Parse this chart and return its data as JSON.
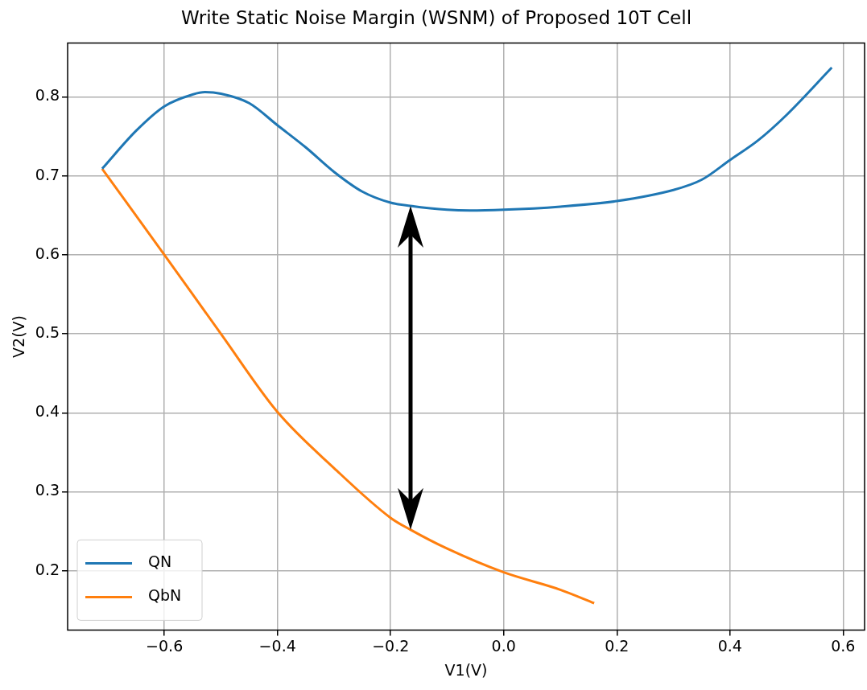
{
  "chart_data": {
    "type": "line",
    "title": "Write Static Noise Margin (WSNM) of Proposed 10T Cell",
    "xlabel": "V1(V)",
    "ylabel": "V2(V)",
    "series": [
      {
        "name": "QN",
        "color": "#1f77b4",
        "x": [
          -0.71,
          -0.65,
          -0.6,
          -0.55,
          -0.528,
          -0.5,
          -0.45,
          -0.4,
          -0.35,
          -0.3,
          -0.25,
          -0.2,
          -0.165,
          -0.1,
          -0.06,
          0.0,
          0.1,
          0.2,
          0.3,
          0.35,
          0.4,
          0.45,
          0.5,
          0.58
        ],
        "values": [
          0.709,
          0.757,
          0.788,
          0.803,
          0.806,
          0.804,
          0.792,
          0.764,
          0.736,
          0.705,
          0.68,
          0.666,
          0.662,
          0.657,
          0.656,
          0.657,
          0.661,
          0.668,
          0.682,
          0.695,
          0.72,
          0.745,
          0.777,
          0.837
        ]
      },
      {
        "name": "QbN",
        "color": "#ff7f0e",
        "x": [
          -0.71,
          -0.6,
          -0.5,
          -0.4,
          -0.3,
          -0.2,
          -0.165,
          -0.1,
          0.0,
          0.1,
          0.16
        ],
        "values": [
          0.709,
          0.6,
          0.5,
          0.401,
          0.33,
          0.267,
          0.252,
          0.228,
          0.198,
          0.176,
          0.159
        ]
      }
    ],
    "xlim": [
      -0.771,
      0.638
    ],
    "xticks": [
      {
        "value": -0.6,
        "label": "−0.6"
      },
      {
        "value": -0.4,
        "label": "−0.4"
      },
      {
        "value": -0.2,
        "label": "−0.2"
      },
      {
        "value": 0,
        "label": "0.0"
      },
      0.2,
      0.4,
      0.6
    ],
    "ylim": [
      0.125,
      0.868
    ],
    "yticks": [
      0.2,
      0.3,
      0.4,
      0.5,
      0.6,
      0.7,
      0.8
    ],
    "grid": true,
    "legend": "bottom left",
    "line_style": "solid"
  }
}
